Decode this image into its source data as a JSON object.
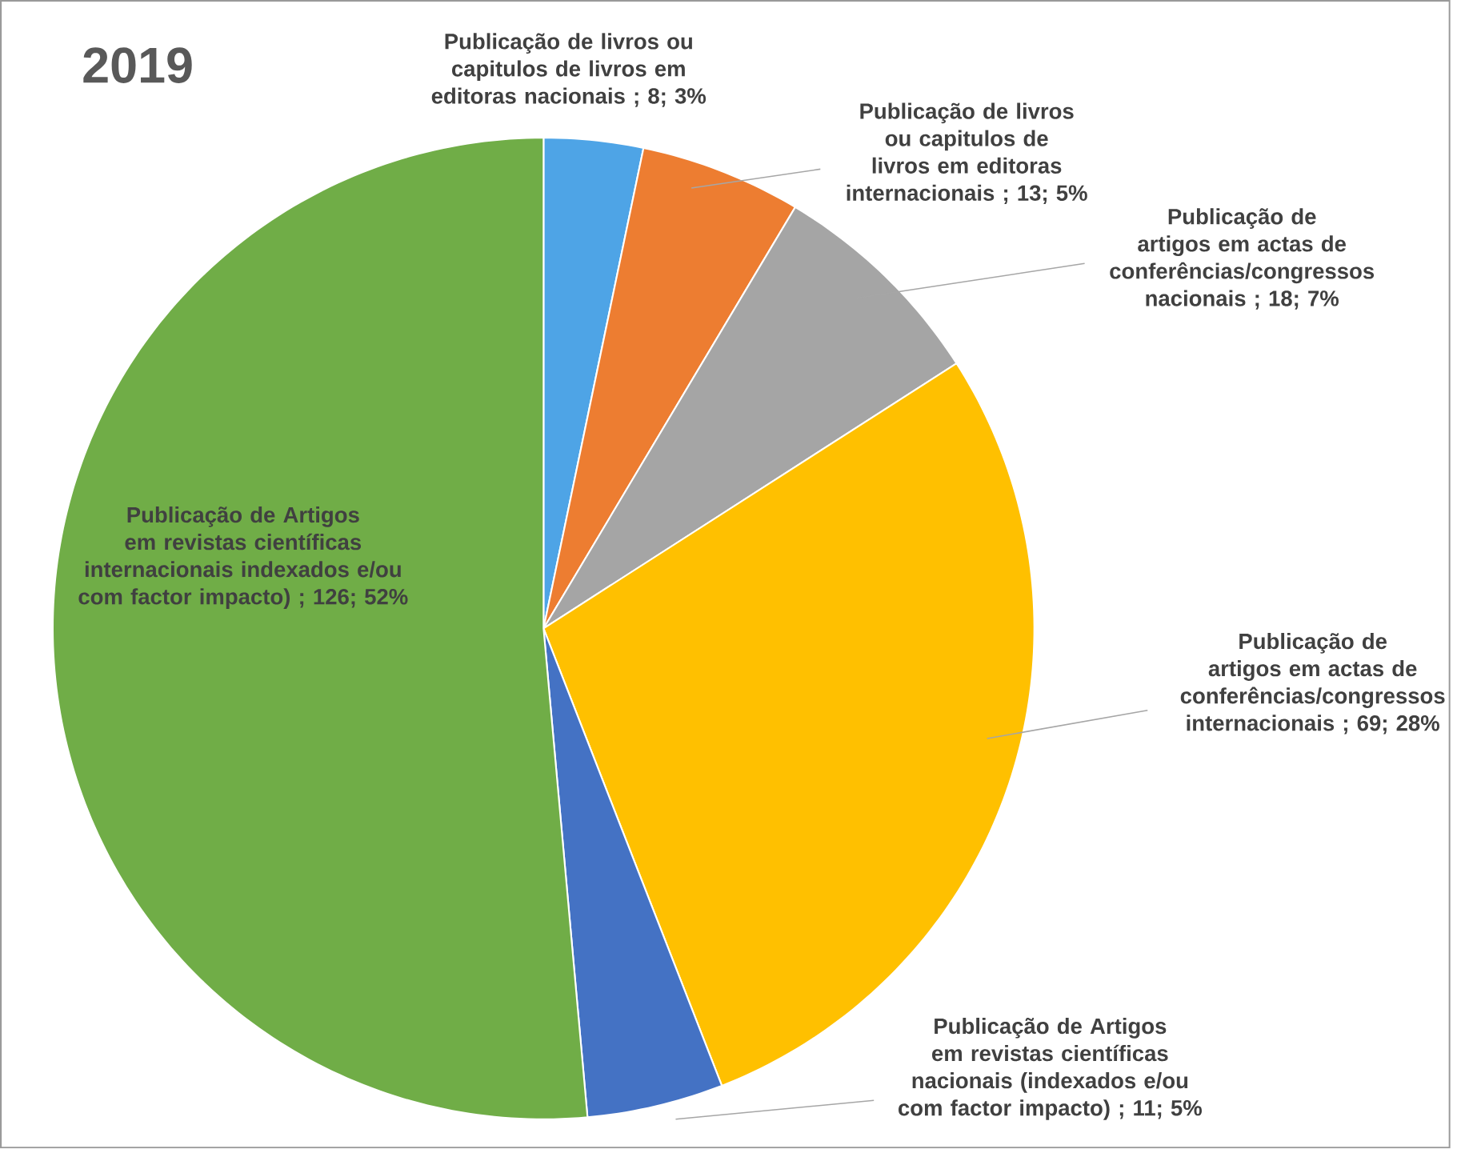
{
  "chart_data": {
    "type": "pie",
    "title": "2019",
    "categories": [
      "Publicação de livros ou capitulos de livros em editoras nacionais",
      "Publicação de livros ou capitulos de livros em editoras internacionais",
      "Publicação de artigos em actas de conferências/congressos nacionais",
      "Publicação de artigos em actas de conferências/congressos internacionais",
      "Publicação de Artigos em revistas científicas nacionais (indexados e/ou com factor impacto)",
      "Publicação de Artigos em revistas científicas internacionais indexados e/ou com factor impacto)"
    ],
    "values": [
      8,
      13,
      18,
      69,
      11,
      126
    ],
    "value_labels": [
      "; 8; 3%",
      "; 13; 5%",
      "; 18; 7%",
      "; 69; 28%",
      "; 11; 5%",
      "; 126; 52%"
    ],
    "colors": [
      "#4ea4e6",
      "#ed7d31",
      "#a5a5a5",
      "#ffc000",
      "#4472c4",
      "#70ad47"
    ]
  }
}
